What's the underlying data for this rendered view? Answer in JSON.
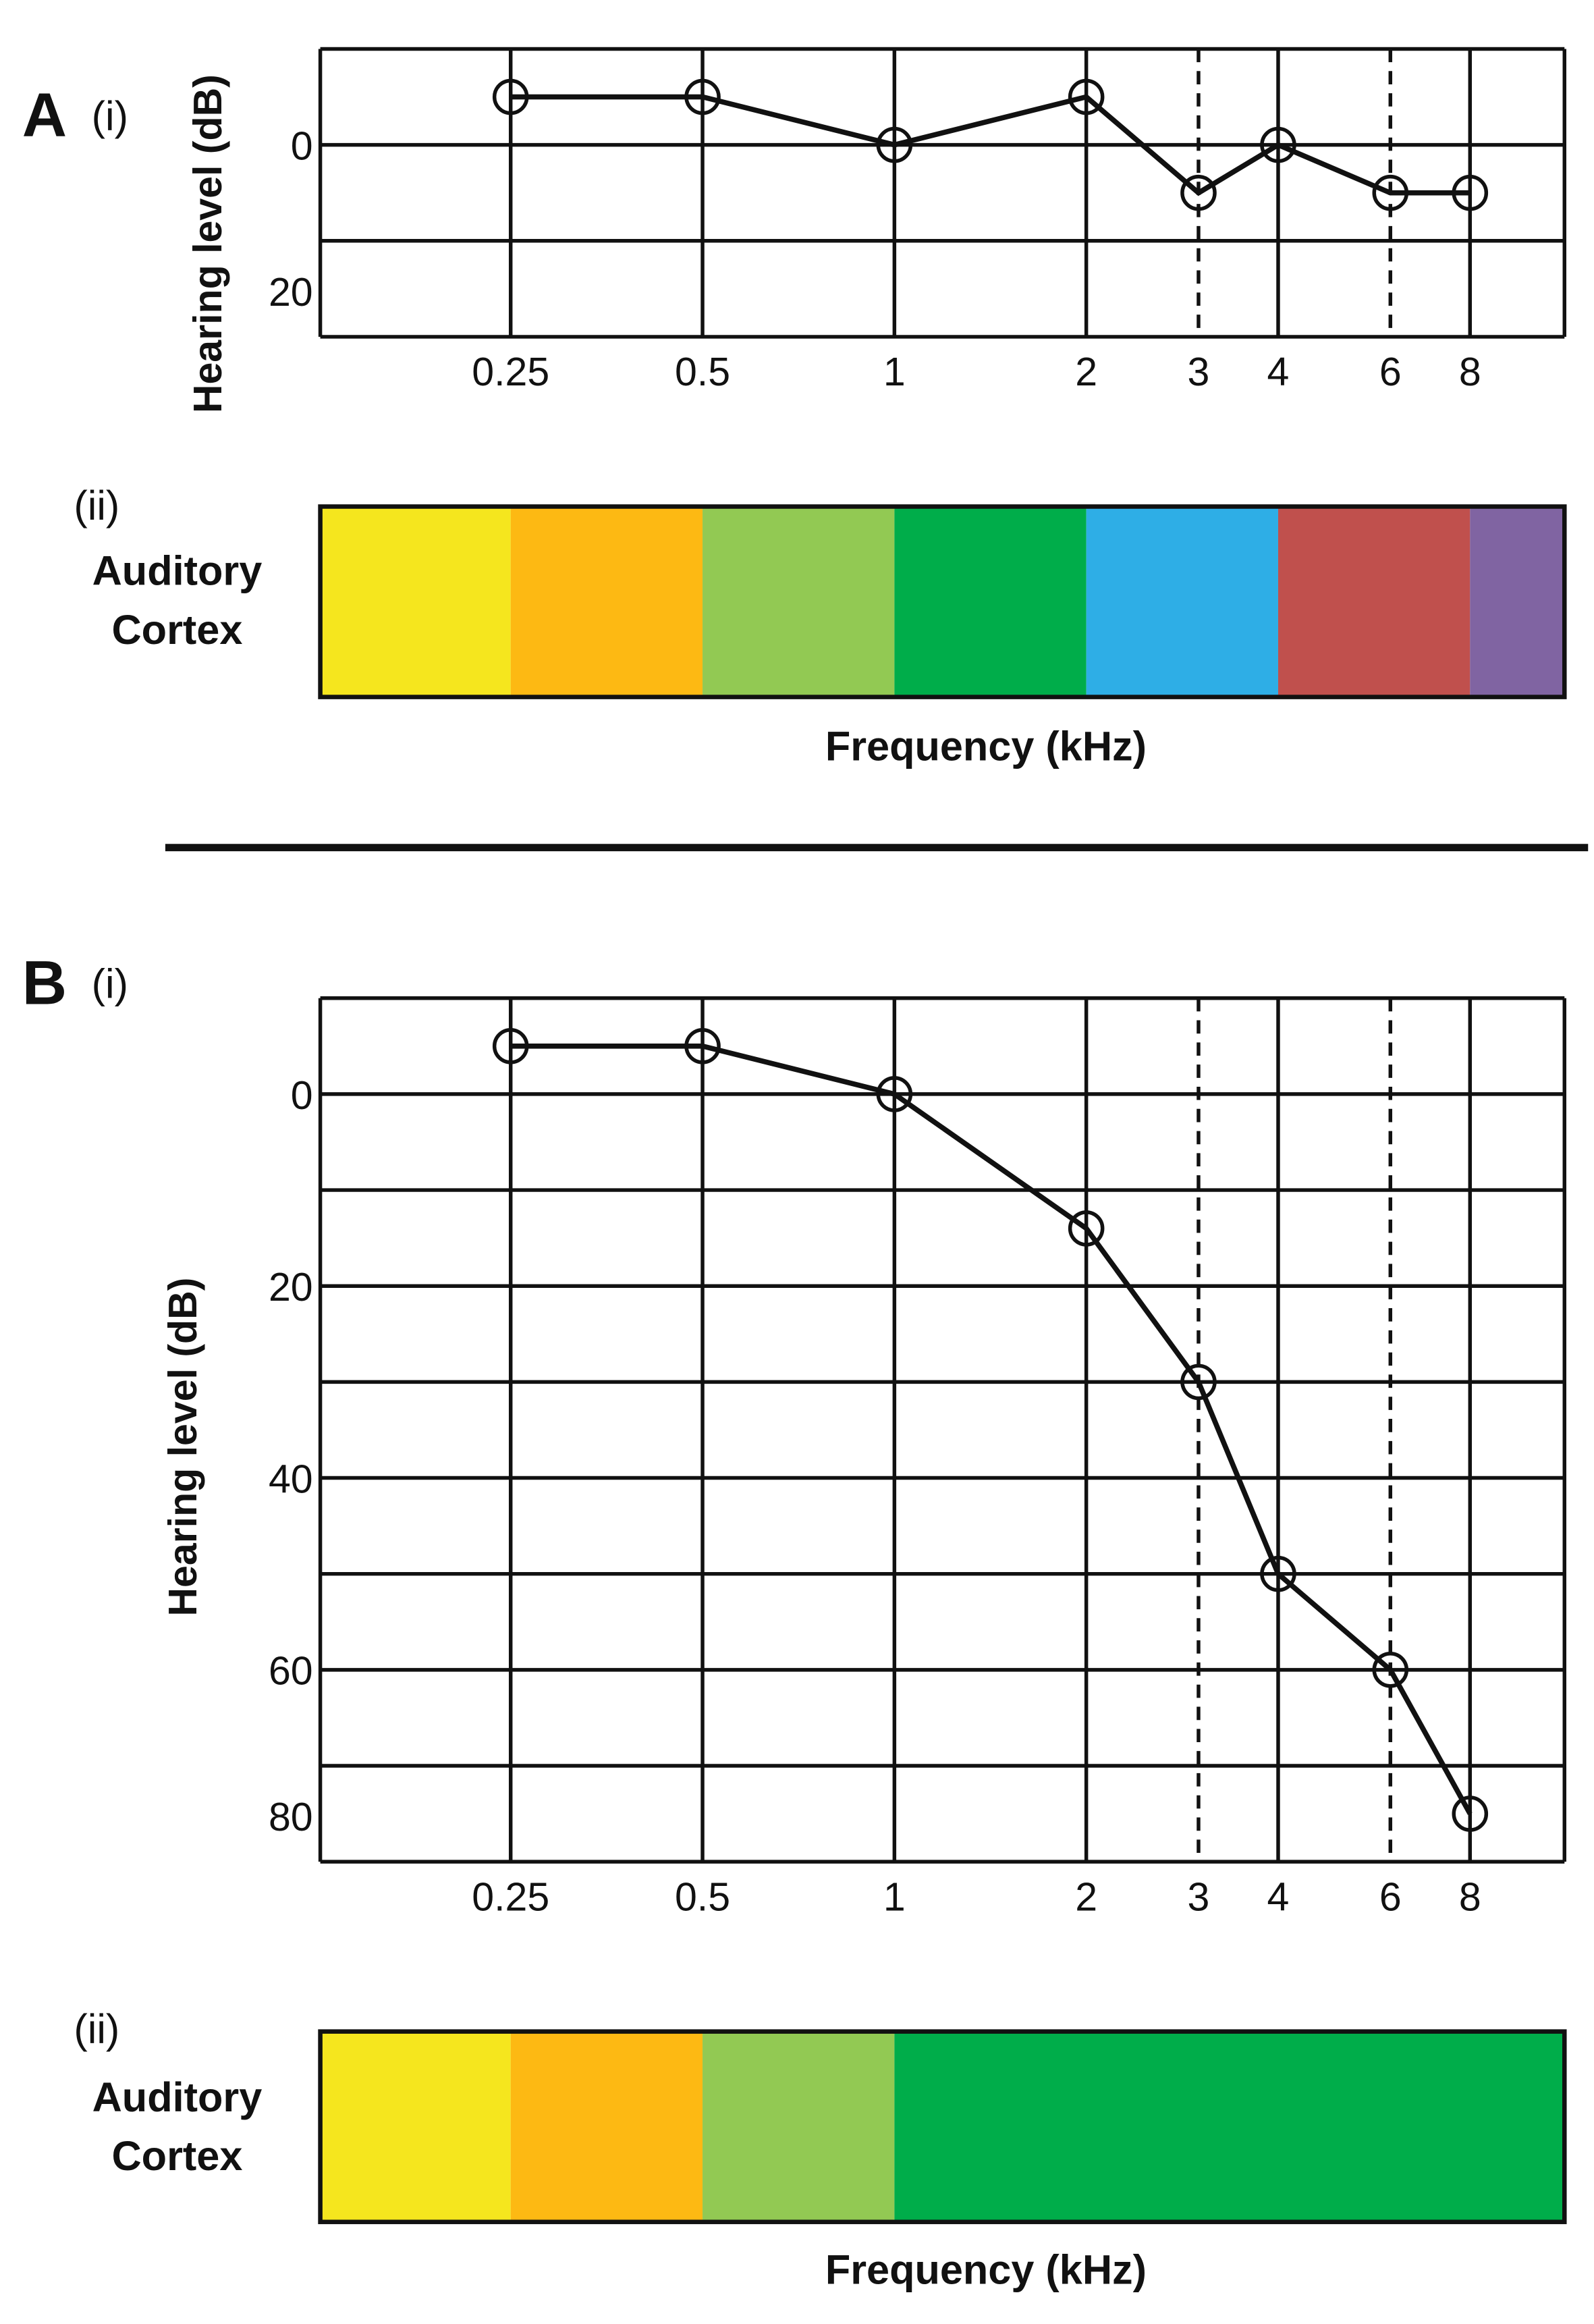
{
  "chart_data": [
    {
      "type": "line",
      "panel_label": "A",
      "sub_label": "(i)",
      "ylabel": "Hearing level (dB)",
      "xlabel": "Frequency (kHz)",
      "x": [
        0.25,
        0.5,
        1,
        2,
        3,
        4,
        6,
        8
      ],
      "x_tick_labels": [
        "0.25",
        "0.5",
        "1",
        "2",
        "3",
        "4",
        "6",
        "8"
      ],
      "dashed_x": [
        3,
        6
      ],
      "ylim": [
        -10,
        20
      ],
      "y_inverted": true,
      "y_ticks": [
        0,
        20
      ],
      "y_tick_labels": [
        "0",
        "20"
      ],
      "grid": true,
      "series": [
        {
          "name": "hearing level",
          "values": [
            -5,
            -5,
            0,
            -5,
            5,
            0,
            5,
            5
          ],
          "marker": "open-circle"
        }
      ],
      "cortex": {
        "sub_label": "(ii)",
        "title_line1": "Auditory",
        "title_line2": "Cortex",
        "bands": [
          {
            "from": 0.125,
            "to": 0.25,
            "color": "#f5e61e"
          },
          {
            "from": 0.25,
            "to": 0.5,
            "color": "#fdb913"
          },
          {
            "from": 0.5,
            "to": 1,
            "color": "#92c953"
          },
          {
            "from": 1,
            "to": 2,
            "color": "#00ad4a"
          },
          {
            "from": 2,
            "to": 4,
            "color": "#2eaee6"
          },
          {
            "from": 4,
            "to": 8,
            "color": "#c0504d"
          },
          {
            "from": 8,
            "to": 11.3,
            "color": "#8064a2"
          }
        ]
      }
    },
    {
      "type": "line",
      "panel_label": "B",
      "sub_label": "(i)",
      "ylabel": "Hearing level (dB)",
      "xlabel": "Frequency (kHz)",
      "x": [
        0.25,
        0.5,
        1,
        2,
        3,
        4,
        6,
        8
      ],
      "x_tick_labels": [
        "0.25",
        "0.5",
        "1",
        "2",
        "3",
        "4",
        "6",
        "8"
      ],
      "dashed_x": [
        3,
        6
      ],
      "ylim": [
        -10,
        80
      ],
      "y_inverted": true,
      "y_ticks": [
        0,
        20,
        40,
        60,
        80
      ],
      "y_tick_labels": [
        "0",
        "20",
        "40",
        "60",
        "80"
      ],
      "grid": true,
      "series": [
        {
          "name": "hearing level",
          "values": [
            -5,
            -5,
            0,
            14,
            30,
            50,
            60,
            75
          ],
          "marker": "open-circle"
        }
      ],
      "cortex": {
        "sub_label": "(ii)",
        "title_line1": "Auditory",
        "title_line2": "Cortex",
        "bands": [
          {
            "from": 0.125,
            "to": 0.25,
            "color": "#f5e61e"
          },
          {
            "from": 0.25,
            "to": 0.5,
            "color": "#fdb913"
          },
          {
            "from": 0.5,
            "to": 1,
            "color": "#92c953"
          },
          {
            "from": 1,
            "to": 11.3,
            "color": "#00ad4a"
          }
        ]
      }
    }
  ]
}
